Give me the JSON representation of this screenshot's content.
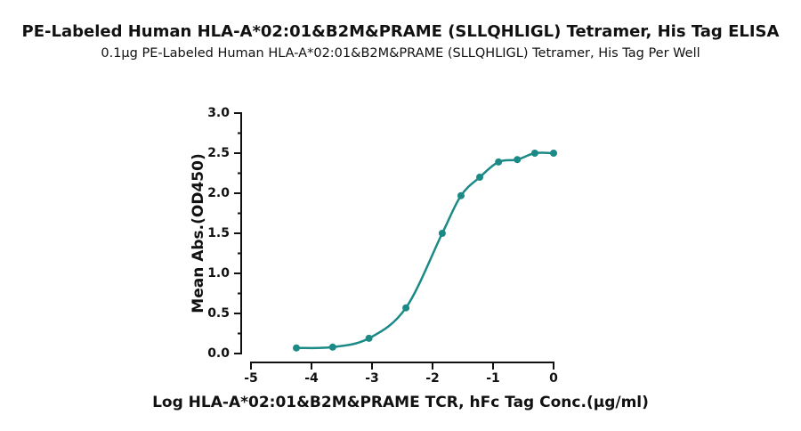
{
  "chart_data": {
    "type": "scatter",
    "title": "PE-Labeled Human HLA-A*02:01&B2M&PRAME (SLLQHLIGL) Tetramer, His Tag ELISA",
    "subtitle": "0.1μg PE-Labeled Human HLA-A*02:01&B2M&PRAME (SLLQHLIGL) Tetramer, His Tag Per Well",
    "x_label": "Log HLA-A*02:01&B2M&PRAME TCR, hFc Tag Conc.(μg/ml)",
    "y_label": "Mean Abs.(OD450)",
    "x": [
      -4.25,
      -3.65,
      -3.05,
      -2.44,
      -1.84,
      -1.53,
      -1.22,
      -0.91,
      -0.6,
      -0.31,
      0
    ],
    "values": [
      0.07,
      0.08,
      0.19,
      0.57,
      1.5,
      1.97,
      2.2,
      2.39,
      2.42,
      2.5,
      2.5
    ],
    "color": "#1b8a87",
    "xlim": [
      -5,
      0
    ],
    "xticks": [
      -5,
      -4,
      -3,
      -2,
      -1,
      0
    ],
    "ylim": [
      0,
      3
    ],
    "yticks": [
      {
        "value": 0,
        "label": "0.0"
      },
      {
        "value": 0.5,
        "label": "0.5"
      },
      {
        "value": 1,
        "label": "1.0"
      },
      {
        "value": 1.5,
        "label": "1.5"
      },
      {
        "value": 2,
        "label": "2.0"
      },
      {
        "value": 2.5,
        "label": "2.5"
      },
      {
        "value": 3,
        "label": "3.0"
      }
    ]
  }
}
